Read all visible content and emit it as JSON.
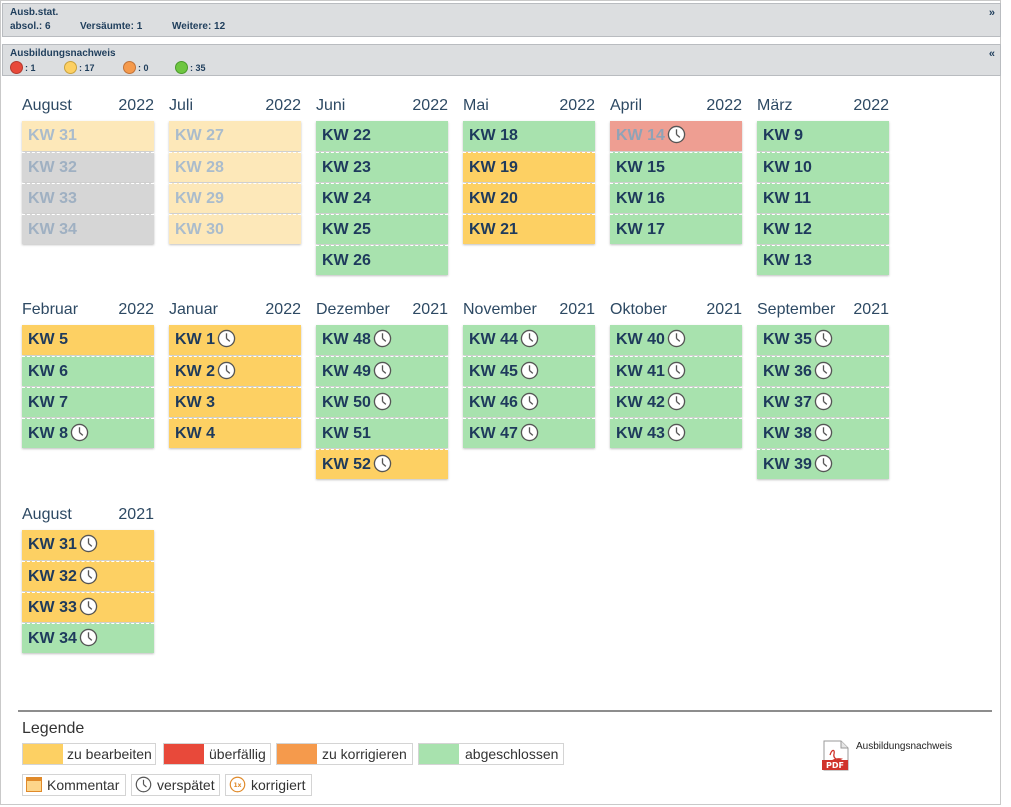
{
  "header_panel": {
    "title": "Ausb.stat.",
    "toggle": "»",
    "stats": [
      {
        "label": "absol.: 6"
      },
      {
        "label": "Versäumte: 1"
      },
      {
        "label": "Weitere: 12"
      }
    ]
  },
  "nachweis_panel": {
    "title": "Ausbildungsnachweis",
    "toggle": "«",
    "counters": [
      {
        "color": "#e8493a",
        "label": ": 1"
      },
      {
        "color": "#fdd063",
        "label": ": 17"
      },
      {
        "color": "#f59a4c",
        "label": ": 0"
      },
      {
        "color": "#6ec640",
        "label": ": 35"
      }
    ]
  },
  "colors": {
    "green": "#a8e2ae",
    "orange": "#fdd063",
    "red": "#ee9e92",
    "gray": "#d6d6d6",
    "cream": "#fde8b9"
  },
  "months": [
    {
      "name": "August",
      "year": "2022",
      "weeks": [
        {
          "label": "KW 31",
          "state": "cream",
          "late": false
        },
        {
          "label": "KW 32",
          "state": "gray",
          "late": false
        },
        {
          "label": "KW 33",
          "state": "gray",
          "late": false
        },
        {
          "label": "KW 34",
          "state": "gray",
          "late": false
        }
      ]
    },
    {
      "name": "Juli",
      "year": "2022",
      "weeks": [
        {
          "label": "KW 27",
          "state": "cream",
          "late": false
        },
        {
          "label": "KW 28",
          "state": "cream",
          "late": false
        },
        {
          "label": "KW 29",
          "state": "cream",
          "late": false
        },
        {
          "label": "KW 30",
          "state": "cream",
          "late": false
        }
      ]
    },
    {
      "name": "Juni",
      "year": "2022",
      "weeks": [
        {
          "label": "KW 22",
          "state": "green",
          "late": false
        },
        {
          "label": "KW 23",
          "state": "green",
          "late": false
        },
        {
          "label": "KW 24",
          "state": "green",
          "late": false
        },
        {
          "label": "KW 25",
          "state": "green",
          "late": false
        },
        {
          "label": "KW 26",
          "state": "green",
          "late": false
        }
      ]
    },
    {
      "name": "Mai",
      "year": "2022",
      "weeks": [
        {
          "label": "KW 18",
          "state": "green",
          "late": false
        },
        {
          "label": "KW 19",
          "state": "orange",
          "late": false
        },
        {
          "label": "KW 20",
          "state": "orange",
          "late": false
        },
        {
          "label": "KW 21",
          "state": "orange",
          "late": false
        }
      ]
    },
    {
      "name": "April",
      "year": "2022",
      "weeks": [
        {
          "label": "KW 14",
          "state": "red",
          "late": true
        },
        {
          "label": "KW 15",
          "state": "green",
          "late": false
        },
        {
          "label": "KW 16",
          "state": "green",
          "late": false
        },
        {
          "label": "KW 17",
          "state": "green",
          "late": false
        }
      ]
    },
    {
      "name": "März",
      "year": "2022",
      "weeks": [
        {
          "label": "KW 9",
          "state": "green",
          "late": false
        },
        {
          "label": "KW 10",
          "state": "green",
          "late": false
        },
        {
          "label": "KW 11",
          "state": "green",
          "late": false
        },
        {
          "label": "KW 12",
          "state": "green",
          "late": false
        },
        {
          "label": "KW 13",
          "state": "green",
          "late": false
        }
      ]
    },
    {
      "name": "Februar",
      "year": "2022",
      "weeks": [
        {
          "label": "KW 5",
          "state": "orange",
          "late": false
        },
        {
          "label": "KW 6",
          "state": "green",
          "late": false
        },
        {
          "label": "KW 7",
          "state": "green",
          "late": false
        },
        {
          "label": "KW 8",
          "state": "green",
          "late": true
        }
      ]
    },
    {
      "name": "Januar",
      "year": "2022",
      "weeks": [
        {
          "label": "KW 1",
          "state": "orange",
          "late": true
        },
        {
          "label": "KW 2",
          "state": "orange",
          "late": true
        },
        {
          "label": "KW 3",
          "state": "orange",
          "late": false
        },
        {
          "label": "KW 4",
          "state": "orange",
          "late": false
        }
      ]
    },
    {
      "name": "Dezember",
      "year": "2021",
      "weeks": [
        {
          "label": "KW 48",
          "state": "green",
          "late": true
        },
        {
          "label": "KW 49",
          "state": "green",
          "late": true
        },
        {
          "label": "KW 50",
          "state": "green",
          "late": true
        },
        {
          "label": "KW 51",
          "state": "green",
          "late": false
        },
        {
          "label": "KW 52",
          "state": "orange",
          "late": true
        }
      ]
    },
    {
      "name": "November",
      "year": "2021",
      "weeks": [
        {
          "label": "KW 44",
          "state": "green",
          "late": true
        },
        {
          "label": "KW 45",
          "state": "green",
          "late": true
        },
        {
          "label": "KW 46",
          "state": "green",
          "late": true
        },
        {
          "label": "KW 47",
          "state": "green",
          "late": true
        }
      ]
    },
    {
      "name": "Oktober",
      "year": "2021",
      "weeks": [
        {
          "label": "KW 40",
          "state": "green",
          "late": true
        },
        {
          "label": "KW 41",
          "state": "green",
          "late": true
        },
        {
          "label": "KW 42",
          "state": "green",
          "late": true
        },
        {
          "label": "KW 43",
          "state": "green",
          "late": true
        }
      ]
    },
    {
      "name": "September",
      "year": "2021",
      "weeks": [
        {
          "label": "KW 35",
          "state": "green",
          "late": true
        },
        {
          "label": "KW 36",
          "state": "green",
          "late": true
        },
        {
          "label": "KW 37",
          "state": "green",
          "late": true
        },
        {
          "label": "KW 38",
          "state": "green",
          "late": true
        },
        {
          "label": "KW 39",
          "state": "green",
          "late": true
        }
      ]
    },
    {
      "name": "August",
      "year": "2021",
      "weeks": [
        {
          "label": "KW 31",
          "state": "orange",
          "late": true
        },
        {
          "label": "KW 32",
          "state": "orange",
          "late": true
        },
        {
          "label": "KW 33",
          "state": "orange",
          "late": true
        },
        {
          "label": "KW 34",
          "state": "green",
          "late": true
        }
      ]
    }
  ],
  "legend": {
    "title": "Legende",
    "states": [
      {
        "label": "zu bearbeiten",
        "color": "#fdd063"
      },
      {
        "label": "überfällig",
        "color": "#e8493a"
      },
      {
        "label": "zu korrigieren",
        "color": "#f59a4c"
      },
      {
        "label": "abgeschlossen",
        "color": "#a8e2ae"
      }
    ],
    "icons": [
      {
        "label": "Kommentar",
        "icon": "comment-icon"
      },
      {
        "label": "verspätet",
        "icon": "clock-icon"
      },
      {
        "label": "korrigiert",
        "icon": "corrected-icon"
      }
    ]
  },
  "pdf": {
    "icon_text": "PDF",
    "label": "Ausbildungsnachweis"
  }
}
